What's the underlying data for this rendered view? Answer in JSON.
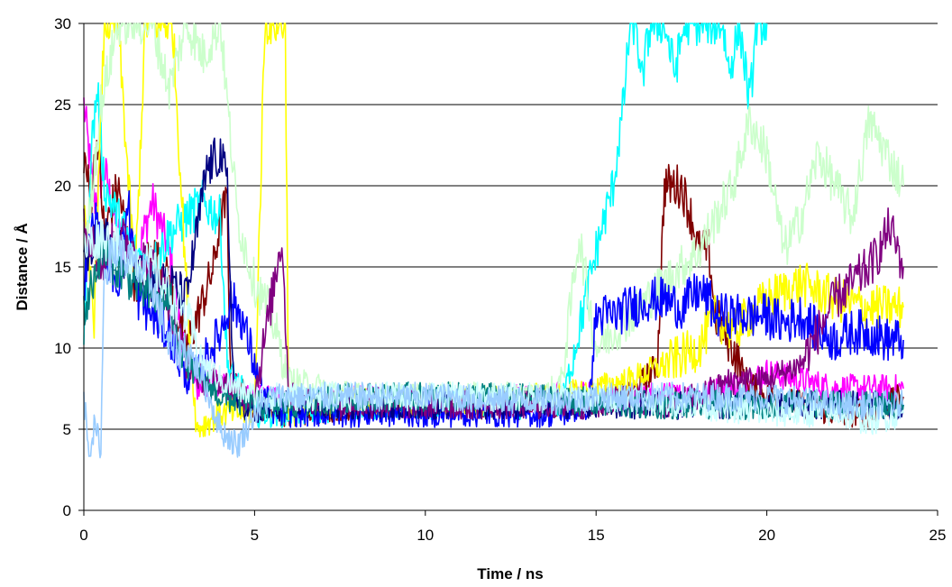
{
  "chart_data": {
    "type": "line",
    "title": "",
    "xlabel": "Time / ns",
    "ylabel": "Distance / Å",
    "xlim": [
      0,
      25
    ],
    "ylim": [
      0,
      30
    ],
    "xticks": [
      0,
      5,
      10,
      15,
      20,
      25
    ],
    "yticks": [
      0,
      5,
      10,
      15,
      20,
      25,
      30
    ],
    "grid": "horizontal",
    "legend": "none",
    "series": [
      {
        "color": "#ff00ff",
        "values": [
          [
            0,
            25
          ],
          [
            0.3,
            19
          ],
          [
            0.6,
            21
          ],
          [
            1,
            17
          ],
          [
            1.5,
            15
          ],
          [
            2,
            19
          ],
          [
            2.5,
            16
          ],
          [
            3,
            9
          ],
          [
            3.3,
            7.5
          ],
          [
            4,
            8
          ],
          [
            5,
            7
          ],
          [
            6,
            6.5
          ],
          [
            8,
            6.8
          ],
          [
            10,
            6.5
          ],
          [
            12,
            6.8
          ],
          [
            14,
            7
          ],
          [
            16,
            7
          ],
          [
            18,
            7
          ],
          [
            19.5,
            8
          ],
          [
            20,
            8.5
          ],
          [
            21,
            8
          ],
          [
            22,
            7.5
          ],
          [
            23,
            7.5
          ],
          [
            24,
            7.5
          ]
        ]
      },
      {
        "color": "#800000",
        "values": [
          [
            0,
            22
          ],
          [
            0.2,
            19
          ],
          [
            0.4,
            23
          ],
          [
            0.6,
            17
          ],
          [
            1,
            20
          ],
          [
            1.5,
            14
          ],
          [
            2,
            16
          ],
          [
            2.5,
            14
          ],
          [
            3,
            10
          ],
          [
            3.5,
            13
          ],
          [
            3.8,
            15
          ],
          [
            4,
            18
          ],
          [
            4.2,
            19
          ],
          [
            4.3,
            8
          ],
          [
            5,
            6.5
          ],
          [
            6,
            6
          ],
          [
            8,
            6.5
          ],
          [
            10,
            6.5
          ],
          [
            12,
            6.5
          ],
          [
            14,
            6.5
          ],
          [
            15,
            6.8
          ],
          [
            16,
            7
          ],
          [
            16.8,
            9
          ],
          [
            17,
            20
          ],
          [
            17.5,
            20
          ],
          [
            17.8,
            18
          ],
          [
            18,
            16
          ],
          [
            18.3,
            16
          ],
          [
            18.5,
            12
          ],
          [
            19,
            10
          ],
          [
            19.4,
            8
          ],
          [
            20,
            7
          ],
          [
            21,
            6.5
          ],
          [
            22,
            6
          ],
          [
            23,
            6
          ],
          [
            24,
            7
          ]
        ]
      },
      {
        "color": "#00ffff",
        "values": [
          [
            0,
            10
          ],
          [
            0.2,
            22
          ],
          [
            0.4,
            26
          ],
          [
            0.6,
            20
          ],
          [
            1,
            18
          ],
          [
            1.5,
            16
          ],
          [
            2,
            15
          ],
          [
            2.5,
            17
          ],
          [
            3,
            18
          ],
          [
            3.5,
            19
          ],
          [
            4,
            18
          ],
          [
            4.2,
            9
          ],
          [
            5,
            6
          ],
          [
            6,
            6
          ],
          [
            8,
            6.5
          ],
          [
            10,
            6.5
          ],
          [
            12,
            6.5
          ],
          [
            14,
            6.5
          ],
          [
            14.8,
            14
          ],
          [
            15,
            16
          ],
          [
            15.5,
            20
          ],
          [
            15.8,
            25
          ],
          [
            16,
            30
          ],
          [
            16.2,
            30
          ],
          [
            16.3,
            26
          ],
          [
            16.6,
            30
          ],
          [
            17,
            30
          ],
          [
            17.3,
            27
          ],
          [
            17.6,
            30
          ],
          [
            18,
            30
          ],
          [
            18.7,
            30
          ],
          [
            18.9,
            27
          ],
          [
            19.2,
            30
          ],
          [
            19.5,
            25
          ],
          [
            19.7,
            30
          ],
          [
            20,
            30
          ]
        ]
      },
      {
        "color": "#ffff00",
        "values": [
          [
            0,
            18
          ],
          [
            0.3,
            12
          ],
          [
            0.6,
            30
          ],
          [
            1,
            30
          ],
          [
            1.5,
            14
          ],
          [
            1.8,
            30
          ],
          [
            2.2,
            30
          ],
          [
            2.6,
            30
          ],
          [
            3,
            14
          ],
          [
            3.3,
            5
          ],
          [
            4,
            6
          ],
          [
            5,
            6
          ],
          [
            5.3,
            30
          ],
          [
            5.6,
            30
          ],
          [
            5.9,
            30
          ],
          [
            6,
            6
          ],
          [
            8,
            6.8
          ],
          [
            10,
            6.5
          ],
          [
            12,
            6.8
          ],
          [
            14,
            7
          ],
          [
            16,
            8
          ],
          [
            17,
            9
          ],
          [
            18,
            10
          ],
          [
            18.5,
            12
          ],
          [
            19,
            11
          ],
          [
            19.5,
            12
          ],
          [
            20,
            13
          ],
          [
            21,
            14
          ],
          [
            22,
            13
          ],
          [
            23,
            12.5
          ],
          [
            24,
            12.5
          ]
        ]
      },
      {
        "color": "#ccffcc",
        "values": [
          [
            0,
            15
          ],
          [
            0.5,
            25
          ],
          [
            1,
            30
          ],
          [
            1.5,
            30
          ],
          [
            2,
            30
          ],
          [
            2.5,
            26
          ],
          [
            3,
            30
          ],
          [
            3.5,
            28
          ],
          [
            4,
            30
          ],
          [
            4.5,
            18
          ],
          [
            5,
            14
          ],
          [
            5.5,
            12
          ],
          [
            6,
            8
          ],
          [
            8,
            7
          ],
          [
            10,
            7
          ],
          [
            12,
            7
          ],
          [
            13.5,
            7
          ],
          [
            14,
            8
          ],
          [
            14.5,
            17
          ],
          [
            15,
            10
          ],
          [
            16,
            12
          ],
          [
            17,
            14
          ],
          [
            18,
            16
          ],
          [
            18.5,
            18
          ],
          [
            19,
            20
          ],
          [
            19.5,
            24
          ],
          [
            20,
            22
          ],
          [
            20.5,
            16
          ],
          [
            21,
            18
          ],
          [
            21.5,
            22
          ],
          [
            22,
            20
          ],
          [
            22.5,
            18
          ],
          [
            23,
            24
          ],
          [
            23.5,
            22
          ],
          [
            24,
            20
          ]
        ]
      },
      {
        "color": "#0000ff",
        "values": [
          [
            0,
            14
          ],
          [
            0.3,
            18
          ],
          [
            0.6,
            16
          ],
          [
            1,
            14
          ],
          [
            1.3,
            19
          ],
          [
            1.6,
            13
          ],
          [
            2,
            12
          ],
          [
            2.5,
            11
          ],
          [
            3,
            8
          ],
          [
            3.5,
            9
          ],
          [
            4,
            11
          ],
          [
            4.3,
            13
          ],
          [
            4.6,
            12
          ],
          [
            5,
            9
          ],
          [
            5.3,
            7
          ],
          [
            5.6,
            6
          ],
          [
            6,
            6
          ],
          [
            8,
            6
          ],
          [
            10,
            6
          ],
          [
            12,
            6
          ],
          [
            14,
            6
          ],
          [
            14.8,
            6.5
          ],
          [
            15,
            12
          ],
          [
            15.5,
            12
          ],
          [
            16,
            12.5
          ],
          [
            16.5,
            13
          ],
          [
            17,
            13
          ],
          [
            17.5,
            12.5
          ],
          [
            18,
            13.5
          ],
          [
            18.3,
            13
          ],
          [
            18.5,
            12
          ],
          [
            19,
            12
          ],
          [
            19.5,
            12
          ],
          [
            20,
            12
          ],
          [
            20.5,
            11.5
          ],
          [
            21,
            12
          ],
          [
            21.5,
            11
          ],
          [
            22,
            10.5
          ],
          [
            22.5,
            11
          ],
          [
            23,
            11
          ],
          [
            23.5,
            10.5
          ],
          [
            24,
            10.5
          ]
        ]
      },
      {
        "color": "#000080",
        "values": [
          [
            0,
            15
          ],
          [
            0.5,
            17
          ],
          [
            1,
            16
          ],
          [
            1.5,
            15
          ],
          [
            2,
            14
          ],
          [
            2.5,
            14
          ],
          [
            3,
            13
          ],
          [
            3.3,
            17
          ],
          [
            3.6,
            21
          ],
          [
            4,
            22
          ],
          [
            4.2,
            20
          ],
          [
            4.4,
            7
          ],
          [
            5,
            6
          ],
          [
            6,
            6.5
          ],
          [
            8,
            6.5
          ],
          [
            10,
            6.5
          ],
          [
            12,
            6.5
          ],
          [
            14,
            6.5
          ],
          [
            16,
            6.5
          ],
          [
            18,
            6.5
          ],
          [
            20,
            6.5
          ],
          [
            22,
            6.5
          ],
          [
            24,
            6.5
          ]
        ]
      },
      {
        "color": "#800080",
        "values": [
          [
            0,
            18
          ],
          [
            0.5,
            15
          ],
          [
            1,
            17
          ],
          [
            1.5,
            16
          ],
          [
            2,
            15
          ],
          [
            2.5,
            13
          ],
          [
            3,
            9
          ],
          [
            3.5,
            8
          ],
          [
            4,
            8
          ],
          [
            4.5,
            7
          ],
          [
            5,
            7
          ],
          [
            5.5,
            13
          ],
          [
            5.8,
            17
          ],
          [
            6,
            7
          ],
          [
            8,
            6.5
          ],
          [
            10,
            6.5
          ],
          [
            12,
            6.5
          ],
          [
            14,
            6.5
          ],
          [
            15,
            6.5
          ],
          [
            16,
            7
          ],
          [
            17,
            6.5
          ],
          [
            18,
            7
          ],
          [
            19,
            8
          ],
          [
            20,
            8
          ],
          [
            21,
            9
          ],
          [
            22,
            13
          ],
          [
            22.5,
            14
          ],
          [
            23,
            15
          ],
          [
            23.3,
            16
          ],
          [
            23.6,
            17.5
          ],
          [
            24,
            15
          ]
        ]
      },
      {
        "color": "#008080",
        "values": [
          [
            0,
            12
          ],
          [
            0.5,
            16
          ],
          [
            1,
            15
          ],
          [
            1.5,
            14
          ],
          [
            2,
            13
          ],
          [
            2.5,
            13
          ],
          [
            3,
            9
          ],
          [
            3.5,
            8
          ],
          [
            4,
            7
          ],
          [
            5,
            6.5
          ],
          [
            6,
            6.5
          ],
          [
            8,
            7
          ],
          [
            10,
            7
          ],
          [
            12,
            7
          ],
          [
            14,
            6.8
          ],
          [
            16,
            6.5
          ],
          [
            18,
            6.5
          ],
          [
            20,
            6.5
          ],
          [
            22,
            6.5
          ],
          [
            24,
            6.5
          ]
        ]
      },
      {
        "color": "#ccffff",
        "values": [
          [
            0,
            16
          ],
          [
            0.5,
            17
          ],
          [
            1,
            16
          ],
          [
            2,
            15
          ],
          [
            3,
            12
          ],
          [
            3.5,
            9
          ],
          [
            4,
            8
          ],
          [
            5,
            7
          ],
          [
            6,
            7
          ],
          [
            8,
            7
          ],
          [
            10,
            7
          ],
          [
            12,
            7
          ],
          [
            14,
            7
          ],
          [
            16,
            7
          ],
          [
            18,
            6.5
          ],
          [
            20,
            6
          ],
          [
            22,
            6
          ],
          [
            23,
            5.5
          ],
          [
            24,
            6
          ]
        ]
      },
      {
        "color": "#99ccff",
        "values": [
          [
            0,
            7
          ],
          [
            0.15,
            3.8
          ],
          [
            0.3,
            5
          ],
          [
            0.5,
            4
          ],
          [
            0.6,
            15
          ],
          [
            1,
            16
          ],
          [
            1.5,
            15
          ],
          [
            2,
            14
          ],
          [
            2.5,
            10
          ],
          [
            3,
            10
          ],
          [
            3.5,
            8
          ],
          [
            4,
            5
          ],
          [
            4.5,
            4
          ],
          [
            5,
            6
          ],
          [
            5.5,
            7
          ],
          [
            6,
            7
          ],
          [
            8,
            7
          ],
          [
            10,
            7
          ],
          [
            12,
            6.8
          ],
          [
            14,
            6.8
          ],
          [
            16,
            7
          ],
          [
            18,
            7
          ],
          [
            20,
            7
          ],
          [
            22,
            6.5
          ],
          [
            24,
            6.5
          ]
        ]
      }
    ]
  }
}
